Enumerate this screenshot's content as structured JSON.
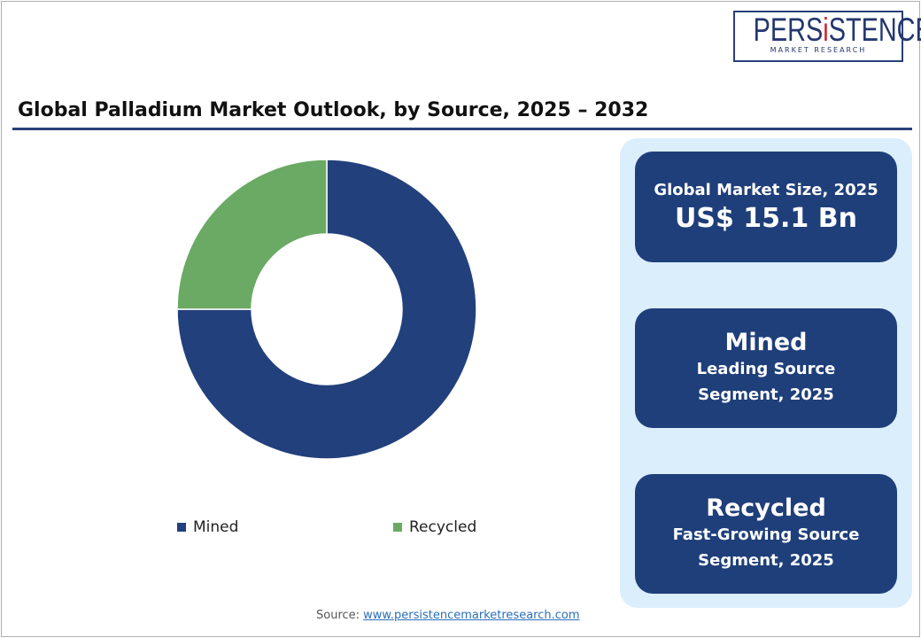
{
  "logo": {
    "name": "PERSiSTENCE",
    "tagline": "MARKET RESEARCH"
  },
  "title": "Global Palladium Market Outlook, by Source, 2025 – 2032",
  "cards": [
    {
      "line1": "Global Market Size, 2025",
      "line2": "US$ 15.1 Bn"
    },
    {
      "line1": "Mined",
      "line2": "Leading Source Segment, 2025"
    },
    {
      "line1": "Recycled",
      "line2": "Fast-Growing Source Segment, 2025"
    }
  ],
  "source": {
    "label": "Source:",
    "link": "www.persistencemarketresearch.com"
  },
  "chart_data": {
    "type": "pie",
    "donut": true,
    "categories": [
      "Mined",
      "Recycled"
    ],
    "values": [
      75,
      25
    ],
    "colors": [
      "#22407c",
      "#6aaa64"
    ],
    "legend": "bottom"
  }
}
